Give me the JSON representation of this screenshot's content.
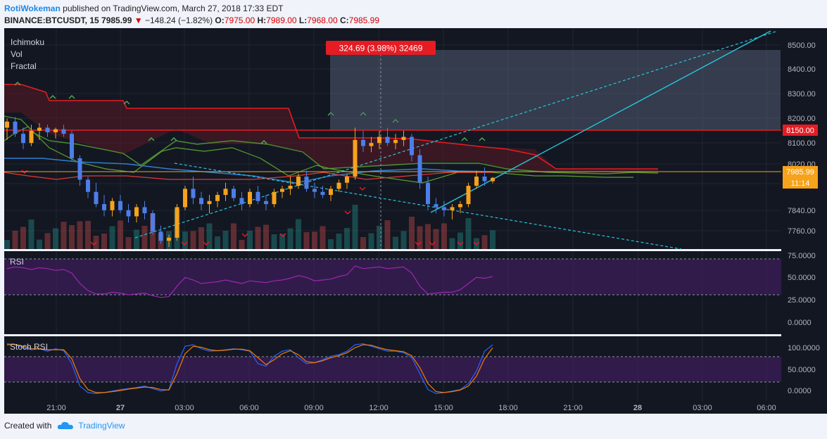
{
  "header": {
    "user": "RotiWokeman",
    "published": "published on TradingView.com, March 27, 2018 17:33 EDT",
    "symbol": "BINANCE:BTCUSDT, 15",
    "last": "7985.99",
    "change": "−148.24 (−1.82%)",
    "o_label": "O:",
    "o": "7975.00",
    "h_label": "H:",
    "h": "7989.00",
    "l_label": "L:",
    "l": "7968.00",
    "c_label": "C:",
    "c": "7985.99"
  },
  "indicators": [
    "Ichimoku",
    "Vol",
    "Fractal"
  ],
  "measure_label": "324.69 (3.98%) 32469",
  "footer": {
    "created": "Created with",
    "brand": "TradingView"
  },
  "colors": {
    "background": "#131722",
    "up": "#f7a21b",
    "down": "#4d7ee8",
    "resistance": "#e51c23",
    "trendline": "#26c6da",
    "rsi": "#9c27b0"
  },
  "chart_data": [
    {
      "type": "candlestick",
      "title": "BINANCE:BTCUSDT, 15",
      "x_ticks": [
        "21:00",
        "27",
        "03:00",
        "06:00",
        "09:00",
        "12:00",
        "15:00",
        "18:00",
        "21:00",
        "28",
        "03:00",
        "06:00"
      ],
      "y_ticks": [
        "8500.00",
        "8400.00",
        "8300.00",
        "8200.00",
        "8100.00",
        "8020.00",
        "7920.00",
        "7840.00",
        "7760.00"
      ],
      "ylim": [
        7720,
        8560
      ],
      "price_labels": {
        "resistance": "8150.00",
        "last": "7985.99",
        "countdown": "11:14"
      },
      "horizontal_levels": [
        8150,
        7985.99
      ],
      "candles": [
        [
          8150,
          8180,
          8110,
          8170
        ],
        [
          8170,
          8185,
          8120,
          8130
        ],
        [
          8130,
          8150,
          8080,
          8100
        ],
        [
          8100,
          8160,
          8090,
          8140
        ],
        [
          8140,
          8165,
          8110,
          8150
        ],
        [
          8150,
          8160,
          8120,
          8135
        ],
        [
          8135,
          8150,
          8115,
          8145
        ],
        [
          8145,
          8160,
          8120,
          8130
        ],
        [
          8130,
          8140,
          8040,
          8050
        ],
        [
          8050,
          8060,
          7960,
          7980
        ],
        [
          7980,
          7990,
          7920,
          7940
        ],
        [
          7940,
          7970,
          7890,
          7900
        ],
        [
          7900,
          7930,
          7860,
          7880
        ],
        [
          7880,
          7920,
          7860,
          7910
        ],
        [
          7910,
          7930,
          7870,
          7880
        ],
        [
          7880,
          7900,
          7840,
          7860
        ],
        [
          7860,
          7900,
          7840,
          7890
        ],
        [
          7890,
          7910,
          7850,
          7870
        ],
        [
          7870,
          7880,
          7800,
          7810
        ],
        [
          7810,
          7830,
          7770,
          7780
        ],
        [
          7780,
          7800,
          7760,
          7790
        ],
        [
          7790,
          7900,
          7780,
          7890
        ],
        [
          7890,
          7960,
          7880,
          7950
        ],
        [
          7950,
          7990,
          7900,
          7920
        ],
        [
          7920,
          7940,
          7880,
          7900
        ],
        [
          7900,
          7930,
          7870,
          7910
        ],
        [
          7910,
          7940,
          7890,
          7930
        ],
        [
          7930,
          7970,
          7910,
          7950
        ],
        [
          7950,
          7960,
          7910,
          7920
        ],
        [
          7920,
          7940,
          7880,
          7900
        ],
        [
          7900,
          7950,
          7890,
          7940
        ],
        [
          7940,
          7960,
          7900,
          7910
        ],
        [
          7910,
          7930,
          7880,
          7900
        ],
        [
          7900,
          7950,
          7890,
          7940
        ],
        [
          7940,
          7960,
          7920,
          7950
        ],
        [
          7950,
          7990,
          7930,
          7960
        ],
        [
          7960,
          8000,
          7950,
          7990
        ],
        [
          7990,
          8010,
          7940,
          7950
        ],
        [
          7950,
          7970,
          7920,
          7940
        ],
        [
          7940,
          7960,
          7920,
          7930
        ],
        [
          7930,
          7960,
          7910,
          7950
        ],
        [
          7950,
          7980,
          7940,
          7970
        ],
        [
          7970,
          8000,
          7950,
          7990
        ],
        [
          7990,
          8150,
          7980,
          8110
        ],
        [
          8110,
          8140,
          8070,
          8090
        ],
        [
          8090,
          8120,
          8070,
          8100
        ],
        [
          8100,
          8140,
          8080,
          8120
        ],
        [
          8120,
          8150,
          8090,
          8100
        ],
        [
          8100,
          8130,
          8080,
          8110
        ],
        [
          8110,
          8140,
          8090,
          8120
        ],
        [
          8120,
          8130,
          8040,
          8060
        ],
        [
          8060,
          8080,
          7950,
          7970
        ],
        [
          7970,
          7990,
          7880,
          7900
        ],
        [
          7900,
          7920,
          7870,
          7890
        ],
        [
          7890,
          7910,
          7860,
          7880
        ],
        [
          7880,
          7900,
          7850,
          7890
        ],
        [
          7890,
          7910,
          7870,
          7900
        ],
        [
          7900,
          7970,
          7890,
          7960
        ],
        [
          7960,
          8010,
          7950,
          7990
        ],
        [
          7990,
          8020,
          7960,
          7975
        ],
        [
          7975,
          7989,
          7968,
          7985.99
        ]
      ]
    },
    {
      "type": "line",
      "title": "RSI",
      "y_ticks": [
        "75.0000",
        "50.0000",
        "25.0000",
        "0.0000"
      ],
      "ylim": [
        -10,
        85
      ],
      "band": [
        30,
        70
      ],
      "values": [
        65,
        67,
        66,
        64,
        66,
        65,
        63,
        64,
        60,
        48,
        40,
        36,
        36,
        38,
        37,
        35,
        36,
        37,
        34,
        32,
        33,
        45,
        55,
        52,
        48,
        49,
        50,
        52,
        50,
        48,
        51,
        50,
        49,
        51,
        52,
        54,
        57,
        55,
        51,
        52,
        53,
        56,
        58,
        68,
        65,
        66,
        67,
        65,
        66,
        67,
        60,
        45,
        36,
        37,
        38,
        38,
        41,
        48,
        55,
        54,
        56
      ]
    },
    {
      "type": "line",
      "title": "Stoch RSI",
      "y_ticks": [
        "100.0000",
        "50.0000",
        "0.0000"
      ],
      "ylim": [
        -15,
        115
      ],
      "band": [
        20,
        80
      ],
      "series": [
        {
          "values": [
            100,
            98,
            92,
            88,
            90,
            85,
            90,
            86,
            60,
            15,
            2,
            0,
            2,
            5,
            8,
            10,
            12,
            15,
            10,
            5,
            8,
            60,
            95,
            98,
            90,
            85,
            86,
            88,
            90,
            88,
            85,
            60,
            55,
            75,
            85,
            88,
            72,
            60,
            62,
            68,
            75,
            78,
            85,
            98,
            100,
            95,
            90,
            85,
            85,
            82,
            72,
            40,
            8,
            0,
            2,
            5,
            8,
            20,
            45,
            85,
            98
          ]
        },
        {
          "values": [
            98,
            99,
            95,
            90,
            90,
            88,
            88,
            88,
            70,
            30,
            8,
            2,
            2,
            4,
            6,
            9,
            11,
            13,
            12,
            8,
            7,
            40,
            80,
            95,
            93,
            88,
            86,
            87,
            89,
            89,
            86,
            72,
            58,
            68,
            80,
            86,
            78,
            64,
            62,
            66,
            72,
            76,
            82,
            92,
            98,
            97,
            92,
            88,
            86,
            84,
            76,
            52,
            20,
            4,
            2,
            4,
            7,
            15,
            35,
            70,
            92
          ]
        }
      ]
    }
  ]
}
